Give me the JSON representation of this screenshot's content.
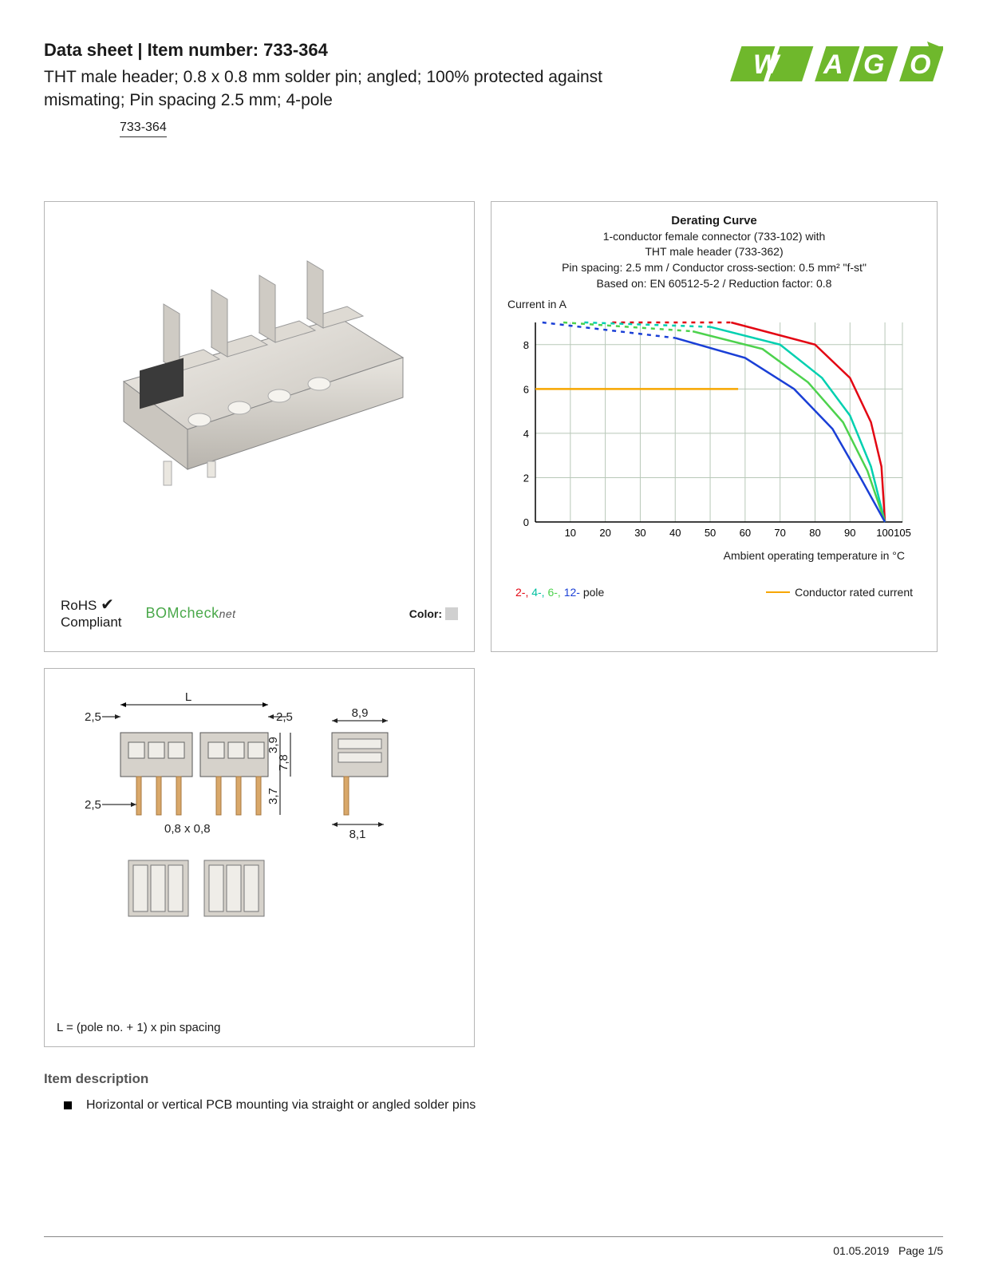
{
  "header": {
    "title_prefix": "Data sheet",
    "title_sep": "  |  ",
    "title_item_label": "Item number: ",
    "item_number": "733-364",
    "subtitle": "THT male header; 0.8 x 0.8 mm solder pin; angled; 100% protected against mismating; Pin spacing 2.5 mm; 4-pole",
    "part_ref": "733-364",
    "brand": "WAGO",
    "brand_color": "#6fb82c"
  },
  "product_panel": {
    "rohs_line1": "RoHS",
    "rohs_line2": "Compliant",
    "check": "✔",
    "bomcheck_text": "BOMcheck",
    "bomcheck_suffix": "net",
    "color_label": "Color:",
    "swatch_color": "#d0d0d0"
  },
  "chart": {
    "title": "Derating Curve",
    "sub1": "1-conductor female connector (733-102) with",
    "sub2": "THT male header (733-362)",
    "sub3": "Pin spacing: 2.5 mm / Conductor cross-section: 0.5 mm² \"f-st\"",
    "sub4": "Based on: EN 60512-5-2 / Reduction factor: 0.8",
    "ylabel": "Current in A",
    "xlabel": "Ambient operating temperature in °C",
    "y_ticks": [
      0,
      2,
      4,
      6,
      8
    ],
    "x_ticks": [
      10,
      20,
      30,
      40,
      50,
      60,
      70,
      80,
      90,
      100,
      105
    ],
    "ylim": [
      0,
      9
    ],
    "xlim": [
      0,
      105
    ],
    "grid_color": "#b8c8b8",
    "background_color": "#ffffff",
    "rated_current_y": 6,
    "rated_current_color": "#f7a600",
    "series": {
      "2pole": {
        "color": "#e30613",
        "solid": [
          [
            56,
            9
          ],
          [
            80,
            8
          ],
          [
            90,
            6.5
          ],
          [
            96,
            4.5
          ],
          [
            99,
            2.5
          ],
          [
            100,
            0
          ]
        ],
        "dashed": [
          [
            22,
            9
          ],
          [
            56,
            9
          ]
        ]
      },
      "4pole": {
        "color": "#00d0b0",
        "solid": [
          [
            50,
            8.8
          ],
          [
            70,
            8
          ],
          [
            82,
            6.5
          ],
          [
            90,
            4.8
          ],
          [
            96,
            2.5
          ],
          [
            100,
            0
          ]
        ],
        "dashed": [
          [
            14,
            9
          ],
          [
            50,
            8.8
          ]
        ]
      },
      "6pole": {
        "color": "#4dd24d",
        "solid": [
          [
            45,
            8.6
          ],
          [
            65,
            7.8
          ],
          [
            78,
            6.3
          ],
          [
            88,
            4.5
          ],
          [
            95,
            2.3
          ],
          [
            100,
            0
          ]
        ],
        "dashed": [
          [
            8,
            9
          ],
          [
            45,
            8.6
          ]
        ]
      },
      "12pole": {
        "color": "#1a3fd6",
        "solid": [
          [
            40,
            8.3
          ],
          [
            60,
            7.4
          ],
          [
            74,
            6.0
          ],
          [
            85,
            4.2
          ],
          [
            93,
            2.0
          ],
          [
            100,
            0
          ]
        ],
        "dashed": [
          [
            2,
            9
          ],
          [
            40,
            8.3
          ]
        ]
      }
    },
    "legend_poles": [
      "2-, ",
      "4-, ",
      "6-, ",
      "12- ",
      "pole"
    ],
    "legend_rated": "Conductor rated current"
  },
  "dimensions": {
    "note": "L = (pole no. + 1) x pin spacing",
    "labels": {
      "L": "L",
      "d25": "2,5",
      "d89": "8,9",
      "d81": "8,1",
      "d39": "3,9",
      "d37": "3,7",
      "d78": "7,8",
      "pin": "0,8 x 0,8"
    }
  },
  "description": {
    "heading": "Item description",
    "bullet1": "Horizontal or vertical PCB mounting via straight or angled solder pins"
  },
  "footer": {
    "date": "01.05.2019",
    "page": "Page 1/5"
  }
}
